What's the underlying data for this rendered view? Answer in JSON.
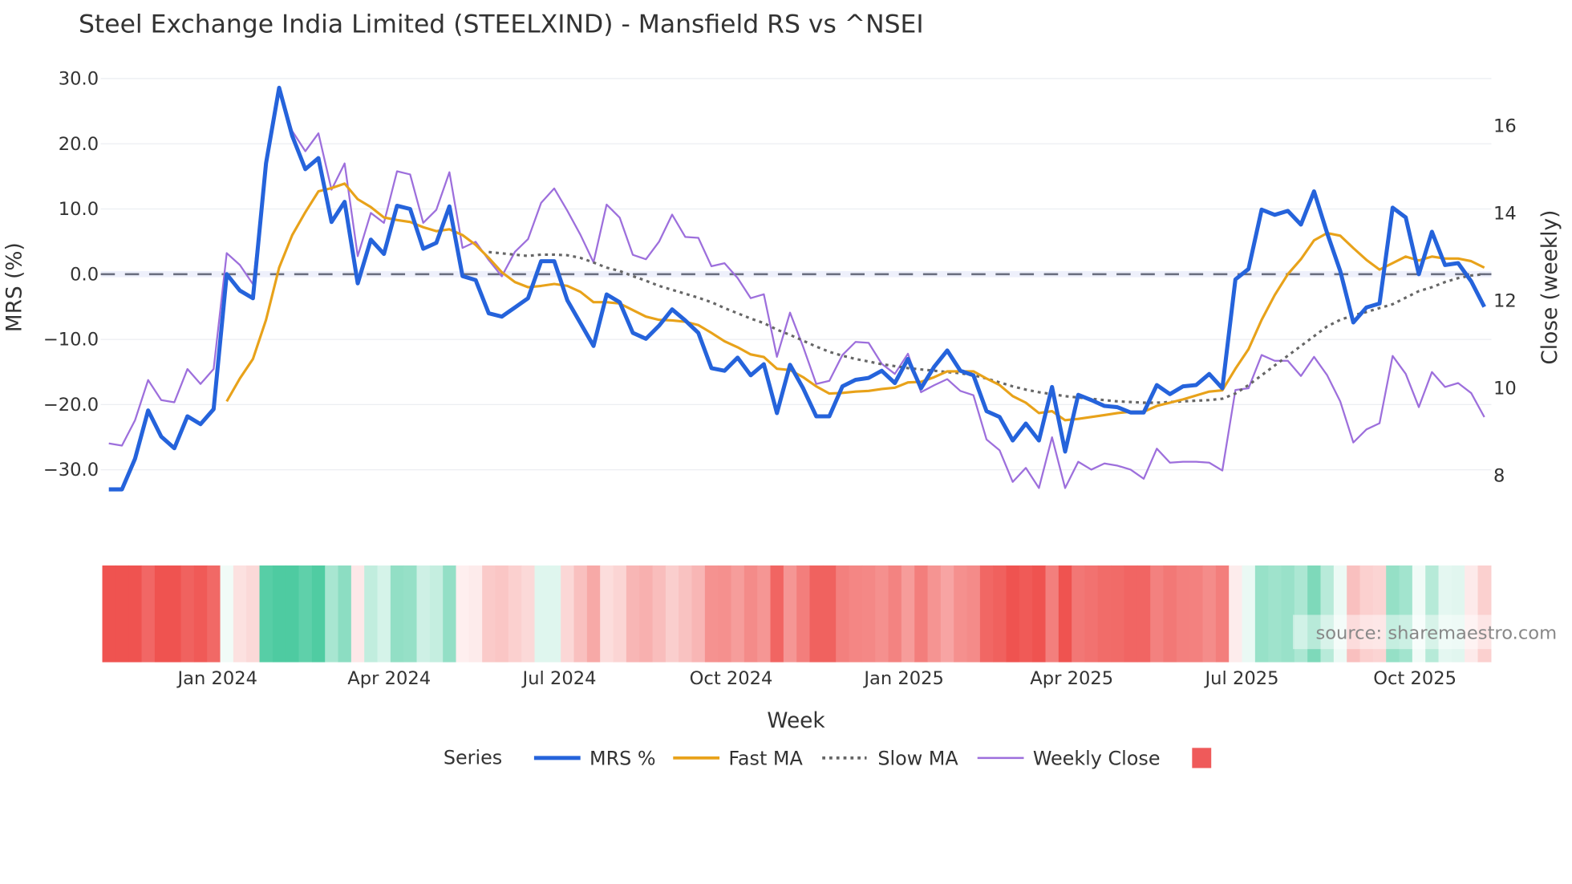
{
  "chart_data": {
    "type": "line",
    "title": "Steel Exchange India Limited (STEELXIND) - Mansfield RS vs ^NSEI",
    "xlabel": "Week",
    "ylabel": "MRS (%)",
    "y2label": "Close (weekly)",
    "ylim": [
      -33,
      30
    ],
    "y2lim": [
      7.7,
      17
    ],
    "y_ticks": [
      "30.0",
      "20.0",
      "10.0",
      "0.0",
      "−10.0",
      "−20.0",
      "−30.0"
    ],
    "y_tick_values": [
      30,
      20,
      10,
      0,
      -10,
      -20,
      -30
    ],
    "y2_ticks": [
      "16",
      "14",
      "12",
      "10",
      "8"
    ],
    "y2_tick_values": [
      16,
      14,
      12,
      10,
      8
    ],
    "x_ticks": [
      "Jan 2024",
      "Apr 2024",
      "Jul 2024",
      "Oct 2024",
      "Jan 2025",
      "Apr 2025",
      "Jul 2025",
      "Oct 2025"
    ],
    "x_tick_week_index": [
      8.3,
      21.4,
      34.4,
      47.5,
      60.7,
      73.5,
      86.5,
      99.7
    ],
    "zero_line": 0,
    "grid": true,
    "legend": {
      "title": "Series",
      "placement": "bottom-center",
      "entries": [
        "MRS %",
        "Fast MA",
        "Slow MA",
        "Weekly Close",
        ""
      ]
    },
    "series": [
      {
        "name": "MRS %",
        "axis": "left",
        "color": "#2563db",
        "values": [
          -33,
          -33,
          -28.3,
          -20.9,
          -24.9,
          -26.7,
          -21.8,
          -23,
          -20.7,
          0,
          -2.5,
          -3.7,
          17,
          28.6,
          21.2,
          16.1,
          17.8,
          8,
          11.1,
          -1.4,
          5.3,
          3.1,
          10.5,
          10,
          3.9,
          4.8,
          10.4,
          -0.3,
          -0.9,
          -6,
          -6.5,
          -5.1,
          -3.7,
          2,
          2,
          -4,
          -7.5,
          -11,
          -3.1,
          -4.3,
          -9,
          -9.9,
          -7.9,
          -5.4,
          -7.1,
          -9,
          -14.4,
          -14.8,
          -12.8,
          -15.5,
          -13.8,
          -21.3,
          -13.9,
          -17.5,
          -21.8,
          -21.8,
          -17.2,
          -16.2,
          -15.9,
          -14.8,
          -16.7,
          -13,
          -17.5,
          -14.2,
          -11.7,
          -14.8,
          -15.5,
          -21,
          -21.9,
          -25.5,
          -22.9,
          -25.5,
          -17.3,
          -27.2,
          -18.5,
          -19.3,
          -20.2,
          -20.4,
          -21.2,
          -21.2,
          -17,
          -18.4,
          -17.2,
          -17,
          -15.3,
          -17.5,
          -0.8,
          0.8,
          9.9,
          9.1,
          9.7,
          7.6,
          12.7,
          6.3,
          0.5,
          -7.4,
          -5.1,
          -4.5,
          10.2,
          8.7,
          0,
          6.5,
          1.4,
          1.7,
          -1.1,
          -5
        ]
      },
      {
        "name": "Fast MA",
        "axis": "left",
        "color": "#e8a21a",
        "values": [
          null,
          null,
          null,
          null,
          null,
          null,
          null,
          null,
          null,
          -19.5,
          -16,
          -13,
          -7,
          1,
          6,
          9.5,
          12.7,
          13.2,
          13.9,
          11.5,
          10.3,
          8.7,
          8.3,
          8,
          7.2,
          6.6,
          6.9,
          6,
          4.5,
          2.5,
          0.3,
          -1.2,
          -2,
          -1.8,
          -1.5,
          -1.8,
          -2.7,
          -4.3,
          -4.3,
          -4.5,
          -5.5,
          -6.5,
          -7,
          -7.1,
          -7.3,
          -7.8,
          -9,
          -10.3,
          -11.2,
          -12.3,
          -12.7,
          -14.5,
          -14.7,
          -15.8,
          -17.2,
          -18.3,
          -18.2,
          -18,
          -17.9,
          -17.6,
          -17.4,
          -16.6,
          -16.5,
          -15.8,
          -14.9,
          -14.9,
          -14.9,
          -16,
          -17,
          -18.7,
          -19.7,
          -21.3,
          -21,
          -22.4,
          -22.2,
          -21.9,
          -21.6,
          -21.3,
          -21.1,
          -21.1,
          -20.2,
          -19.7,
          -19.2,
          -18.6,
          -18,
          -17.8,
          -14.5,
          -11.5,
          -7,
          -3.2,
          0,
          2.3,
          5.2,
          6.3,
          5.9,
          4,
          2.2,
          0.7,
          1.7,
          2.7,
          2.1,
          2.7,
          2.4,
          2.4,
          2,
          1
        ]
      },
      {
        "name": "Slow MA",
        "axis": "left",
        "color": "#666666",
        "values": [
          null,
          null,
          null,
          null,
          null,
          null,
          null,
          null,
          null,
          null,
          null,
          null,
          null,
          null,
          null,
          null,
          null,
          null,
          null,
          null,
          null,
          null,
          null,
          null,
          null,
          null,
          null,
          null,
          null,
          3.4,
          3.2,
          3,
          2.8,
          3,
          3,
          2.9,
          2.5,
          1.8,
          1,
          0.5,
          -0.3,
          -1,
          -1.8,
          -2.4,
          -3,
          -3.6,
          -4.3,
          -5.2,
          -6,
          -6.8,
          -7.5,
          -8.5,
          -9.3,
          -10.2,
          -11.1,
          -11.9,
          -12.5,
          -13,
          -13.4,
          -13.8,
          -14.1,
          -14.4,
          -14.6,
          -14.8,
          -15,
          -15.2,
          -15.5,
          -16,
          -16.6,
          -17.2,
          -17.7,
          -18.1,
          -18.4,
          -18.7,
          -18.9,
          -19.1,
          -19.3,
          -19.5,
          -19.6,
          -19.7,
          -19.7,
          -19.6,
          -19.5,
          -19.4,
          -19.3,
          -19.1,
          -18.3,
          -17,
          -15.5,
          -14,
          -12.5,
          -11,
          -9.5,
          -8,
          -7,
          -6.3,
          -5.8,
          -5.2,
          -4.6,
          -3.6,
          -2.6,
          -2,
          -1.2,
          -0.6,
          -0.2,
          0
        ]
      },
      {
        "name": "Weekly Close",
        "axis": "right",
        "color": "#9d6fdc",
        "values": [
          8.74,
          8.69,
          9.27,
          10.19,
          9.73,
          9.68,
          10.44,
          10.1,
          10.44,
          13.09,
          12.82,
          12.38,
          15.07,
          16.87,
          15.88,
          15.42,
          15.83,
          14.54,
          15.14,
          13.02,
          14.01,
          13.78,
          14.96,
          14.89,
          13.78,
          14.08,
          14.94,
          13.21,
          13.35,
          12.93,
          12.56,
          13.12,
          13.41,
          14.24,
          14.57,
          14.06,
          13.51,
          12.88,
          14.2,
          13.9,
          13.05,
          12.95,
          13.35,
          13.97,
          13.46,
          13.44,
          12.79,
          12.86,
          12.52,
          12.06,
          12.15,
          10.72,
          11.73,
          10.95,
          10.1,
          10.17,
          10.76,
          11.06,
          11.04,
          10.56,
          10.33,
          10.79,
          9.91,
          10.07,
          10.21,
          9.94,
          9.84,
          8.83,
          8.58,
          7.86,
          8.18,
          7.72,
          8.88,
          7.72,
          8.32,
          8.14,
          8.28,
          8.23,
          8.14,
          7.93,
          8.62,
          8.3,
          8.32,
          8.32,
          8.3,
          8.12,
          9.96,
          10,
          10.76,
          10.63,
          10.63,
          10.28,
          10.72,
          10.3,
          9.7,
          8.76,
          9.06,
          9.2,
          10.74,
          10.33,
          9.57,
          10.37,
          10.03,
          10.12,
          9.89,
          9.34
        ]
      }
    ],
    "heatmap": {
      "source_series": "MRS %",
      "positive_color": "#4ecba1",
      "negative_color": "#ef5350"
    }
  },
  "source_note": "source: sharemaestro.com",
  "legend_swatch_color": "#ef5a5a"
}
